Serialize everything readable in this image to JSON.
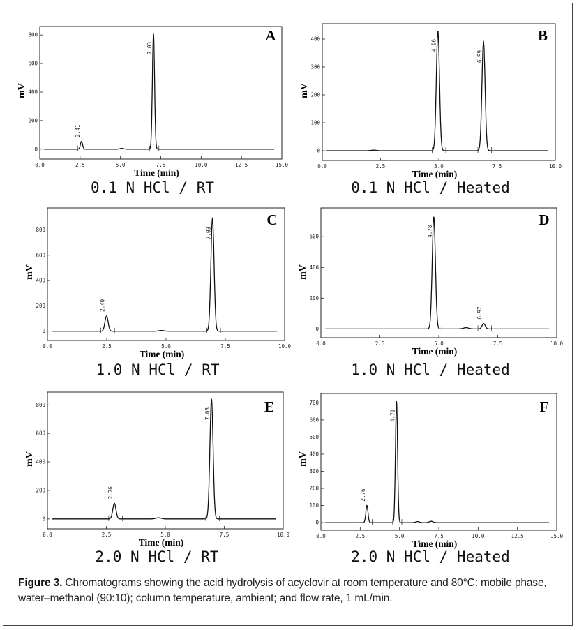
{
  "panels": [
    {
      "letter": "A",
      "title": "0.1 N HCl / RT",
      "xlabel": "Time (min)",
      "ylabel": "mV",
      "xticks": [
        "0.0",
        "2.5",
        "5.0",
        "7.5",
        "10.0",
        "12.5",
        "15.0"
      ],
      "yticks": [
        "0",
        "200",
        "400",
        "600",
        "800"
      ],
      "xmax": 15,
      "ymax": 830,
      "ymin": -40,
      "peaks": [
        {
          "rt": 2.41,
          "h": 55,
          "label": "2.41"
        },
        {
          "rt": 7.03,
          "h": 810,
          "label": "7.03"
        }
      ],
      "minor": [
        {
          "rt": 5.0,
          "h": 6
        }
      ]
    },
    {
      "letter": "B",
      "title": "0.1 N HCl / Heated",
      "xlabel": "Time (min)",
      "ylabel": "mV",
      "xticks": [
        "0.0",
        "2.5",
        "5.0",
        "7.5",
        "10.0"
      ],
      "yticks": [
        "0",
        "100",
        "200",
        "300",
        "400"
      ],
      "xmax": 10,
      "ymax": 440,
      "ymin": -20,
      "peaks": [
        {
          "rt": 4.96,
          "h": 430,
          "label": "4.96"
        },
        {
          "rt": 6.99,
          "h": 390,
          "label": "6.99"
        }
      ],
      "minor": [
        {
          "rt": 2.1,
          "h": 2
        }
      ]
    },
    {
      "letter": "C",
      "title": "1.0 N HCl / RT",
      "xlabel": "Time (min)",
      "ylabel": "mV",
      "xticks": [
        "0.0",
        "2.5",
        "5.0",
        "7.5",
        "10.0"
      ],
      "yticks": [
        "0",
        "200",
        "400",
        "600",
        "800"
      ],
      "xmax": 10,
      "ymax": 940,
      "ymin": -40,
      "peaks": [
        {
          "rt": 2.4,
          "h": 120,
          "label": "2.40"
        },
        {
          "rt": 7.03,
          "h": 890,
          "label": "7.03"
        }
      ],
      "minor": [
        {
          "rt": 4.8,
          "h": 6
        }
      ]
    },
    {
      "letter": "D",
      "title": "1.0 N HCl / Heated",
      "xlabel": "Time (min)",
      "ylabel": "mV",
      "xticks": [
        "0.0",
        "2.5",
        "5.0",
        "7.5",
        "10.0"
      ],
      "yticks": [
        "0",
        "200",
        "400",
        "600"
      ],
      "xmax": 10,
      "ymax": 760,
      "ymin": -30,
      "peaks": [
        {
          "rt": 4.78,
          "h": 730,
          "label": "4.78"
        },
        {
          "rt": 6.97,
          "h": 35,
          "label": "6.97"
        }
      ],
      "minor": [
        {
          "rt": 6.2,
          "h": 8
        }
      ]
    },
    {
      "letter": "E",
      "title": "2.0 N HCl / RT",
      "xlabel": "Time (min)",
      "ylabel": "mV",
      "xticks": [
        "0.0",
        "2.5",
        "5.0",
        "7.5",
        "10.0"
      ],
      "yticks": [
        "0",
        "200",
        "400",
        "600",
        "800"
      ],
      "xmax": 10,
      "ymax": 860,
      "ymin": -40,
      "peaks": [
        {
          "rt": 2.76,
          "h": 110,
          "label": "2.76"
        },
        {
          "rt": 7.03,
          "h": 840,
          "label": "7.03"
        }
      ],
      "minor": [
        {
          "rt": 4.7,
          "h": 8
        }
      ]
    },
    {
      "letter": "F",
      "title": "2.0 N HCl / Heated",
      "xlabel": "Time (min)",
      "ylabel": "mV",
      "xticks": [
        "0.0",
        "2.5",
        "5.0",
        "7.5",
        "10.0",
        "12.5",
        "15.0"
      ],
      "yticks": [
        "0",
        "100",
        "200",
        "300",
        "400",
        "500",
        "600",
        "700"
      ],
      "xmax": 15,
      "ymax": 730,
      "ymin": -20,
      "peaks": [
        {
          "rt": 2.76,
          "h": 100,
          "label": "2.76"
        },
        {
          "rt": 4.71,
          "h": 710,
          "label": "4.71"
        }
      ],
      "minor": [
        {
          "rt": 6.1,
          "h": 6
        },
        {
          "rt": 7.0,
          "h": 8
        }
      ]
    }
  ],
  "caption": {
    "label": "Figure 3.",
    "text": " Chromatograms showing the acid hydrolysis of acyclovir at room temperature and 80°C: mobile phase, water–methanol (90:10); column temperature, ambient; and flow rate, 1 mL/min."
  },
  "chart_data": [
    {
      "panel": "A",
      "type": "line",
      "title": "0.1 N HCl / RT",
      "xlabel": "Time (min)",
      "ylabel": "mV",
      "xlim": [
        0,
        15
      ],
      "ylim": [
        0,
        800
      ],
      "peaks": [
        {
          "rt": 2.41,
          "height_mV": 55
        },
        {
          "rt": 7.03,
          "height_mV": 810
        }
      ]
    },
    {
      "panel": "B",
      "type": "line",
      "title": "0.1 N HCl / Heated",
      "xlabel": "Time (min)",
      "ylabel": "mV",
      "xlim": [
        0,
        10
      ],
      "ylim": [
        0,
        400
      ],
      "peaks": [
        {
          "rt": 4.96,
          "height_mV": 430
        },
        {
          "rt": 6.99,
          "height_mV": 390
        }
      ]
    },
    {
      "panel": "C",
      "type": "line",
      "title": "1.0 N HCl / RT",
      "xlabel": "Time (min)",
      "ylabel": "mV",
      "xlim": [
        0,
        10
      ],
      "ylim": [
        0,
        800
      ],
      "peaks": [
        {
          "rt": 2.4,
          "height_mV": 120
        },
        {
          "rt": 7.03,
          "height_mV": 890
        }
      ]
    },
    {
      "panel": "D",
      "type": "line",
      "title": "1.0 N HCl / Heated",
      "xlabel": "Time (min)",
      "ylabel": "mV",
      "xlim": [
        0,
        10
      ],
      "ylim": [
        0,
        600
      ],
      "peaks": [
        {
          "rt": 4.78,
          "height_mV": 730
        },
        {
          "rt": 6.97,
          "height_mV": 35
        }
      ]
    },
    {
      "panel": "E",
      "type": "line",
      "title": "2.0 N HCl / RT",
      "xlabel": "Time (min)",
      "ylabel": "mV",
      "xlim": [
        0,
        10
      ],
      "ylim": [
        0,
        800
      ],
      "peaks": [
        {
          "rt": 2.76,
          "height_mV": 110
        },
        {
          "rt": 7.03,
          "height_mV": 840
        }
      ]
    },
    {
      "panel": "F",
      "type": "line",
      "title": "2.0 N HCl / Heated",
      "xlabel": "Time (min)",
      "ylabel": "mV",
      "xlim": [
        0,
        15
      ],
      "ylim": [
        0,
        700
      ],
      "peaks": [
        {
          "rt": 2.76,
          "height_mV": 100
        },
        {
          "rt": 4.71,
          "height_mV": 710
        }
      ]
    }
  ]
}
